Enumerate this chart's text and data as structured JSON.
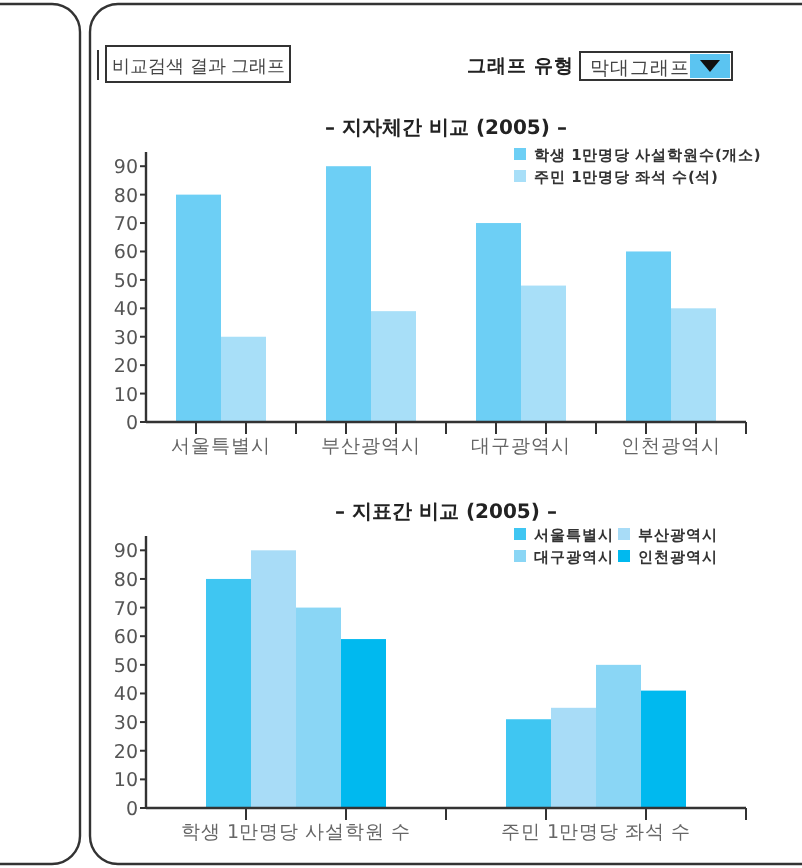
{
  "chart_data": [
    {
      "type": "other",
      "title": "비교검색 결과 그래프",
      "annotations": [
        "그래프 유형",
        "막대그래프"
      ]
    },
    {
      "type": "bar",
      "title": "– 지자체간 비교 (2005) –",
      "categories": [
        "서울특별시",
        "부산광역시",
        "대구광역시",
        "인천광역시"
      ],
      "series": [
        {
          "name": "학생 1만명당 사설학원수(개소)",
          "color": "#6dcff5",
          "values": [
            80,
            90,
            70,
            60
          ]
        },
        {
          "name": "주민 1만명당 좌석 수(석)",
          "color": "#a8dff8",
          "values": [
            30,
            39,
            48,
            40
          ]
        }
      ],
      "ylim": [
        0,
        95
      ],
      "yticks": [
        0,
        10,
        20,
        30,
        40,
        50,
        60,
        70,
        80,
        90
      ],
      "legend": "top right"
    },
    {
      "type": "bar",
      "title": "– 지표간 비교 (2005) –",
      "categories": [
        "학생 1만명당 사설학원 수",
        "주민 1만명당 좌석 수"
      ],
      "series": [
        {
          "name": "서울특별시",
          "color": "#3fc6f2",
          "values": [
            80,
            31
          ]
        },
        {
          "name": "부산광역시",
          "color": "#a8dcf7",
          "values": [
            90,
            35
          ]
        },
        {
          "name": "대구광역시",
          "color": "#8ad6f5",
          "values": [
            70,
            50
          ]
        },
        {
          "name": "인천광역시",
          "color": "#00b9ef",
          "values": [
            59,
            41
          ]
        }
      ],
      "ylim": [
        0,
        95
      ],
      "yticks": [
        0,
        10,
        20,
        30,
        40,
        50,
        60,
        70,
        80,
        90
      ],
      "legend": "top right"
    }
  ]
}
